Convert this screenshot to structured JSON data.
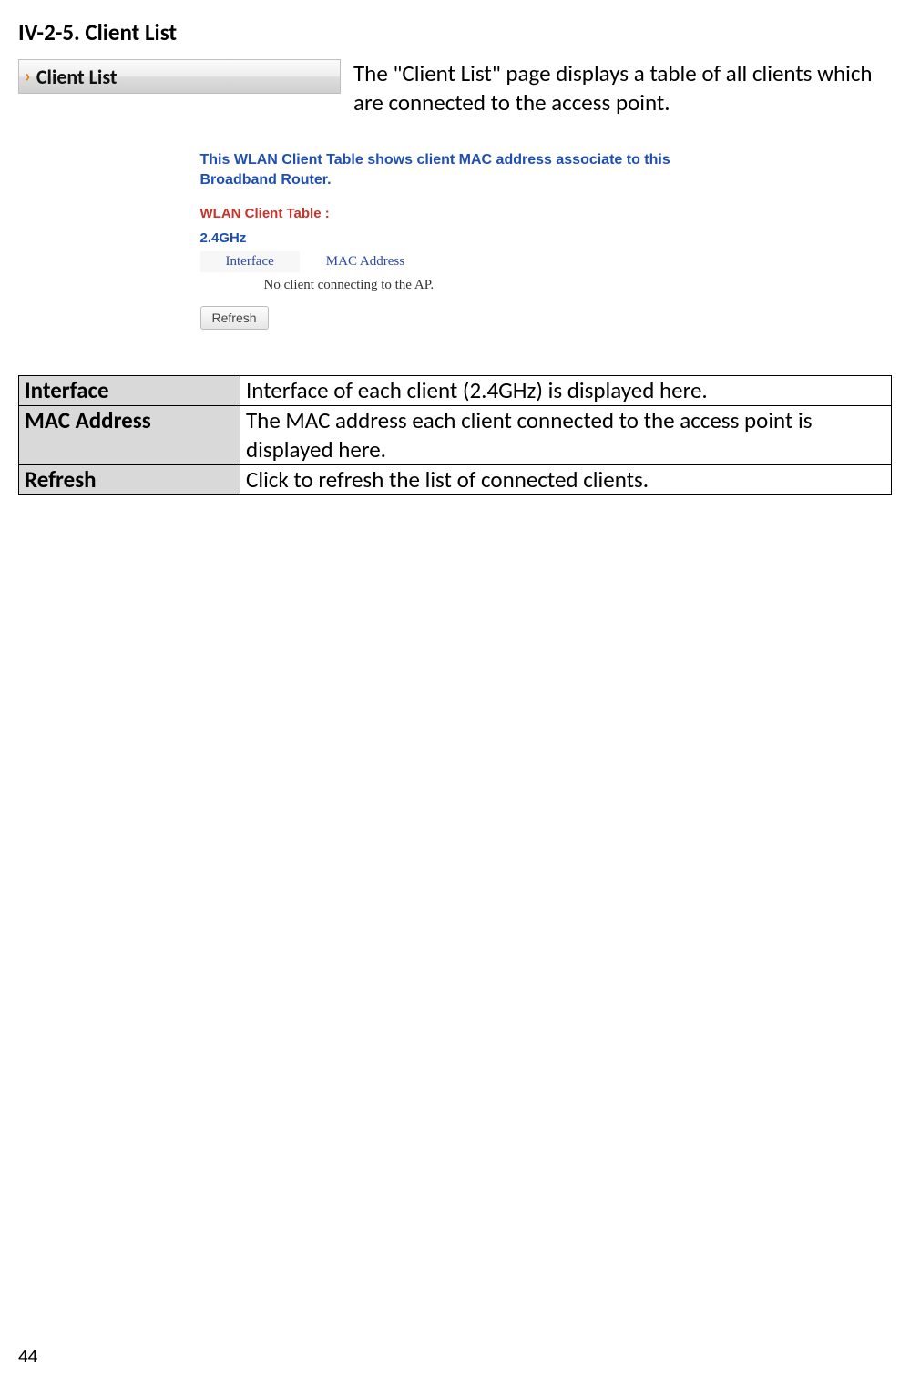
{
  "heading": "IV-2-5. Client List",
  "nav": {
    "chevron": "›",
    "label": "Client List"
  },
  "intro": "The \"Client List\" page displays a table of all clients which are connected to the access point.",
  "screenshot": {
    "description": "This WLAN Client Table shows client MAC address associate to this Broadband Router.",
    "table_title": "WLAN Client Table :",
    "band": "2.4GHz",
    "columns": [
      "Interface",
      "MAC Address"
    ],
    "no_data": "No client connecting to the AP.",
    "refresh_label": "Refresh",
    "colors": {
      "desc_color": "#1f4fb3",
      "title_color": "#c8332b",
      "band_color": "#1f4fb3",
      "header_text_color": "#2b4aa6",
      "header_zebra_bg": "#f7f7f7",
      "button_border": "#bcbcbc"
    }
  },
  "definitions": [
    {
      "term": "Interface",
      "desc": "Interface of each client (2.4GHz) is displayed here."
    },
    {
      "term": "MAC Address",
      "desc": "The MAC address each client connected to the access point is displayed here."
    },
    {
      "term": "Refresh",
      "desc": "Click to refresh the list of connected clients."
    }
  ],
  "page_number": "44"
}
